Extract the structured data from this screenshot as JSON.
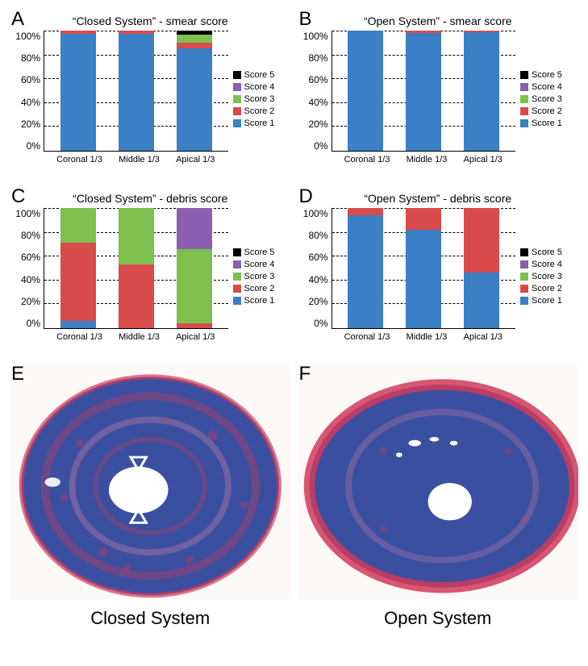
{
  "colors": {
    "score1": "#3b7fc4",
    "score2": "#d94a4a",
    "score3": "#7fbf4d",
    "score4": "#8a5fb0",
    "score5": "#000000",
    "grid": "#000000",
    "bg": "#ffffff"
  },
  "legend_labels": {
    "s5": "Score 5",
    "s4": "Score 4",
    "s3": "Score 3",
    "s2": "Score 2",
    "s1": "Score 1"
  },
  "y_ticks": [
    "100%",
    "80%",
    "60%",
    "40%",
    "20%",
    "0%"
  ],
  "x_categories": [
    "Coronal 1/3",
    "Middle 1/3",
    "Apical 1/3"
  ],
  "panels": {
    "A": {
      "label": "A",
      "title": "“Closed System” - smear score",
      "type": "stacked_bar_100",
      "data": [
        {
          "cat": "Coronal 1/3",
          "s1": 97,
          "s2": 3,
          "s3": 0,
          "s4": 0,
          "s5": 0
        },
        {
          "cat": "Middle 1/3",
          "s1": 97,
          "s2": 3,
          "s3": 0,
          "s4": 0,
          "s5": 0
        },
        {
          "cat": "Apical 1/3",
          "s1": 85,
          "s2": 5,
          "s3": 7,
          "s4": 0,
          "s5": 3
        }
      ]
    },
    "B": {
      "label": "B",
      "title": "“Open System” - smear score",
      "type": "stacked_bar_100",
      "data": [
        {
          "cat": "Coronal 1/3",
          "s1": 100,
          "s2": 0,
          "s3": 0,
          "s4": 0,
          "s5": 0
        },
        {
          "cat": "Middle 1/3",
          "s1": 98,
          "s2": 2,
          "s3": 0,
          "s4": 0,
          "s5": 0
        },
        {
          "cat": "Apical 1/3",
          "s1": 99,
          "s2": 1,
          "s3": 0,
          "s4": 0,
          "s5": 0
        }
      ]
    },
    "C": {
      "label": "C",
      "title": "“Closed System” - debris score",
      "type": "stacked_bar_100",
      "data": [
        {
          "cat": "Coronal 1/3",
          "s1": 6,
          "s2": 65,
          "s3": 29,
          "s4": 0,
          "s5": 0
        },
        {
          "cat": "Middle 1/3",
          "s1": 0,
          "s2": 53,
          "s3": 47,
          "s4": 0,
          "s5": 0
        },
        {
          "cat": "Apical 1/3",
          "s1": 0,
          "s2": 4,
          "s3": 62,
          "s4": 34,
          "s5": 0
        }
      ]
    },
    "D": {
      "label": "D",
      "title": "“Open System” - debris score",
      "type": "stacked_bar_100",
      "data": [
        {
          "cat": "Coronal 1/3",
          "s1": 94,
          "s2": 6,
          "s3": 0,
          "s4": 0,
          "s5": 0
        },
        {
          "cat": "Middle 1/3",
          "s1": 82,
          "s2": 18,
          "s3": 0,
          "s4": 0,
          "s5": 0
        },
        {
          "cat": "Apical 1/3",
          "s1": 46,
          "s2": 54,
          "s3": 0,
          "s4": 0,
          "s5": 0
        }
      ]
    },
    "E": {
      "label": "E"
    },
    "F": {
      "label": "F"
    }
  },
  "captions": {
    "closed": "Closed System",
    "open": "Open System"
  },
  "histology": {
    "tissue_blue": "#3b4fa0",
    "tissue_red": "#d03a5a",
    "tissue_pink": "#e88aa8",
    "lumen": "#ffffff",
    "bg": "#fdf9f7"
  }
}
